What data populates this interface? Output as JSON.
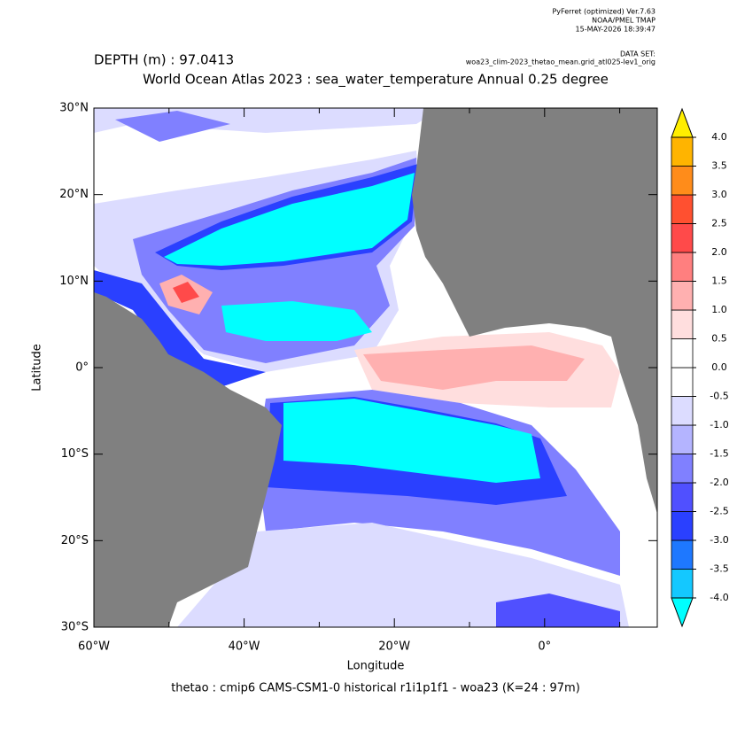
{
  "header": {
    "software": "PyFerret (optimized) Ver.7.63",
    "org": "NOAA/PMEL TMAP",
    "timestamp": "15-MAY-2026 18:39:47",
    "dataset_label": "DATA SET:",
    "dataset": "woa23_clim-2023_thetao_mean.grid_atl025-lev1_orig",
    "depth": "DEPTH (m) : 97.0413"
  },
  "chart_data": {
    "type": "map",
    "title": "World Ocean Atlas 2023 : sea_water_temperature Annual  0.25 degree",
    "x_label": "Longitude",
    "y_label": "Latitude",
    "caption": "thetao : cmip6 CAMS-CSM1-0 historical r1i1p1f1 - woa23  (K=24 : 97m)",
    "xlim": [
      -60,
      15
    ],
    "ylim": [
      -30,
      30
    ],
    "xticks": [
      {
        "value": -60,
        "label": "60°W"
      },
      {
        "value": -40,
        "label": "40°W"
      },
      {
        "value": -20,
        "label": "20°W"
      },
      {
        "value": 0,
        "label": "0°"
      }
    ],
    "x_minor_ticks": [
      -50,
      -30,
      -10,
      10
    ],
    "yticks": [
      {
        "value": -30,
        "label": "30°S"
      },
      {
        "value": -20,
        "label": "20°S"
      },
      {
        "value": -10,
        "label": "10°S"
      },
      {
        "value": 0,
        "label": "0°"
      },
      {
        "value": 10,
        "label": "10°N"
      },
      {
        "value": 20,
        "label": "20°N"
      },
      {
        "value": 30,
        "label": "30°N"
      }
    ],
    "colorbar": {
      "levels": [
        {
          "value": -4,
          "label": "-4.0"
        },
        {
          "value": -3.5,
          "label": "-3.5"
        },
        {
          "value": -3,
          "label": "-3.0"
        },
        {
          "value": -2.5,
          "label": "-2.5"
        },
        {
          "value": -2,
          "label": "-2.0"
        },
        {
          "value": -1.5,
          "label": "-1.5"
        },
        {
          "value": -1,
          "label": "-1.0"
        },
        {
          "value": -0.5,
          "label": "-0.5"
        },
        {
          "value": 0,
          "label": "0.0"
        },
        {
          "value": 0.5,
          "label": "0.5"
        },
        {
          "value": 1,
          "label": "1.0"
        },
        {
          "value": 1.5,
          "label": "1.5"
        },
        {
          "value": 2,
          "label": "2.0"
        },
        {
          "value": 2.5,
          "label": "2.5"
        },
        {
          "value": 3,
          "label": "3.0"
        },
        {
          "value": 3.5,
          "label": "3.5"
        },
        {
          "value": 4,
          "label": "4.0"
        }
      ],
      "colors": [
        "#14c8ff",
        "#1e78ff",
        "#2a40ff",
        "#5050ff",
        "#8080ff",
        "#b4b4ff",
        "#dcdcff",
        "#ffffff",
        "#ffffff",
        "#ffdede",
        "#ffb0b0",
        "#ff7f7f",
        "#ff4a4a",
        "#ff5030",
        "#ff8c1a",
        "#ffb400"
      ],
      "under_color": "#00ffff",
      "over_color": "#ffee00"
    }
  }
}
